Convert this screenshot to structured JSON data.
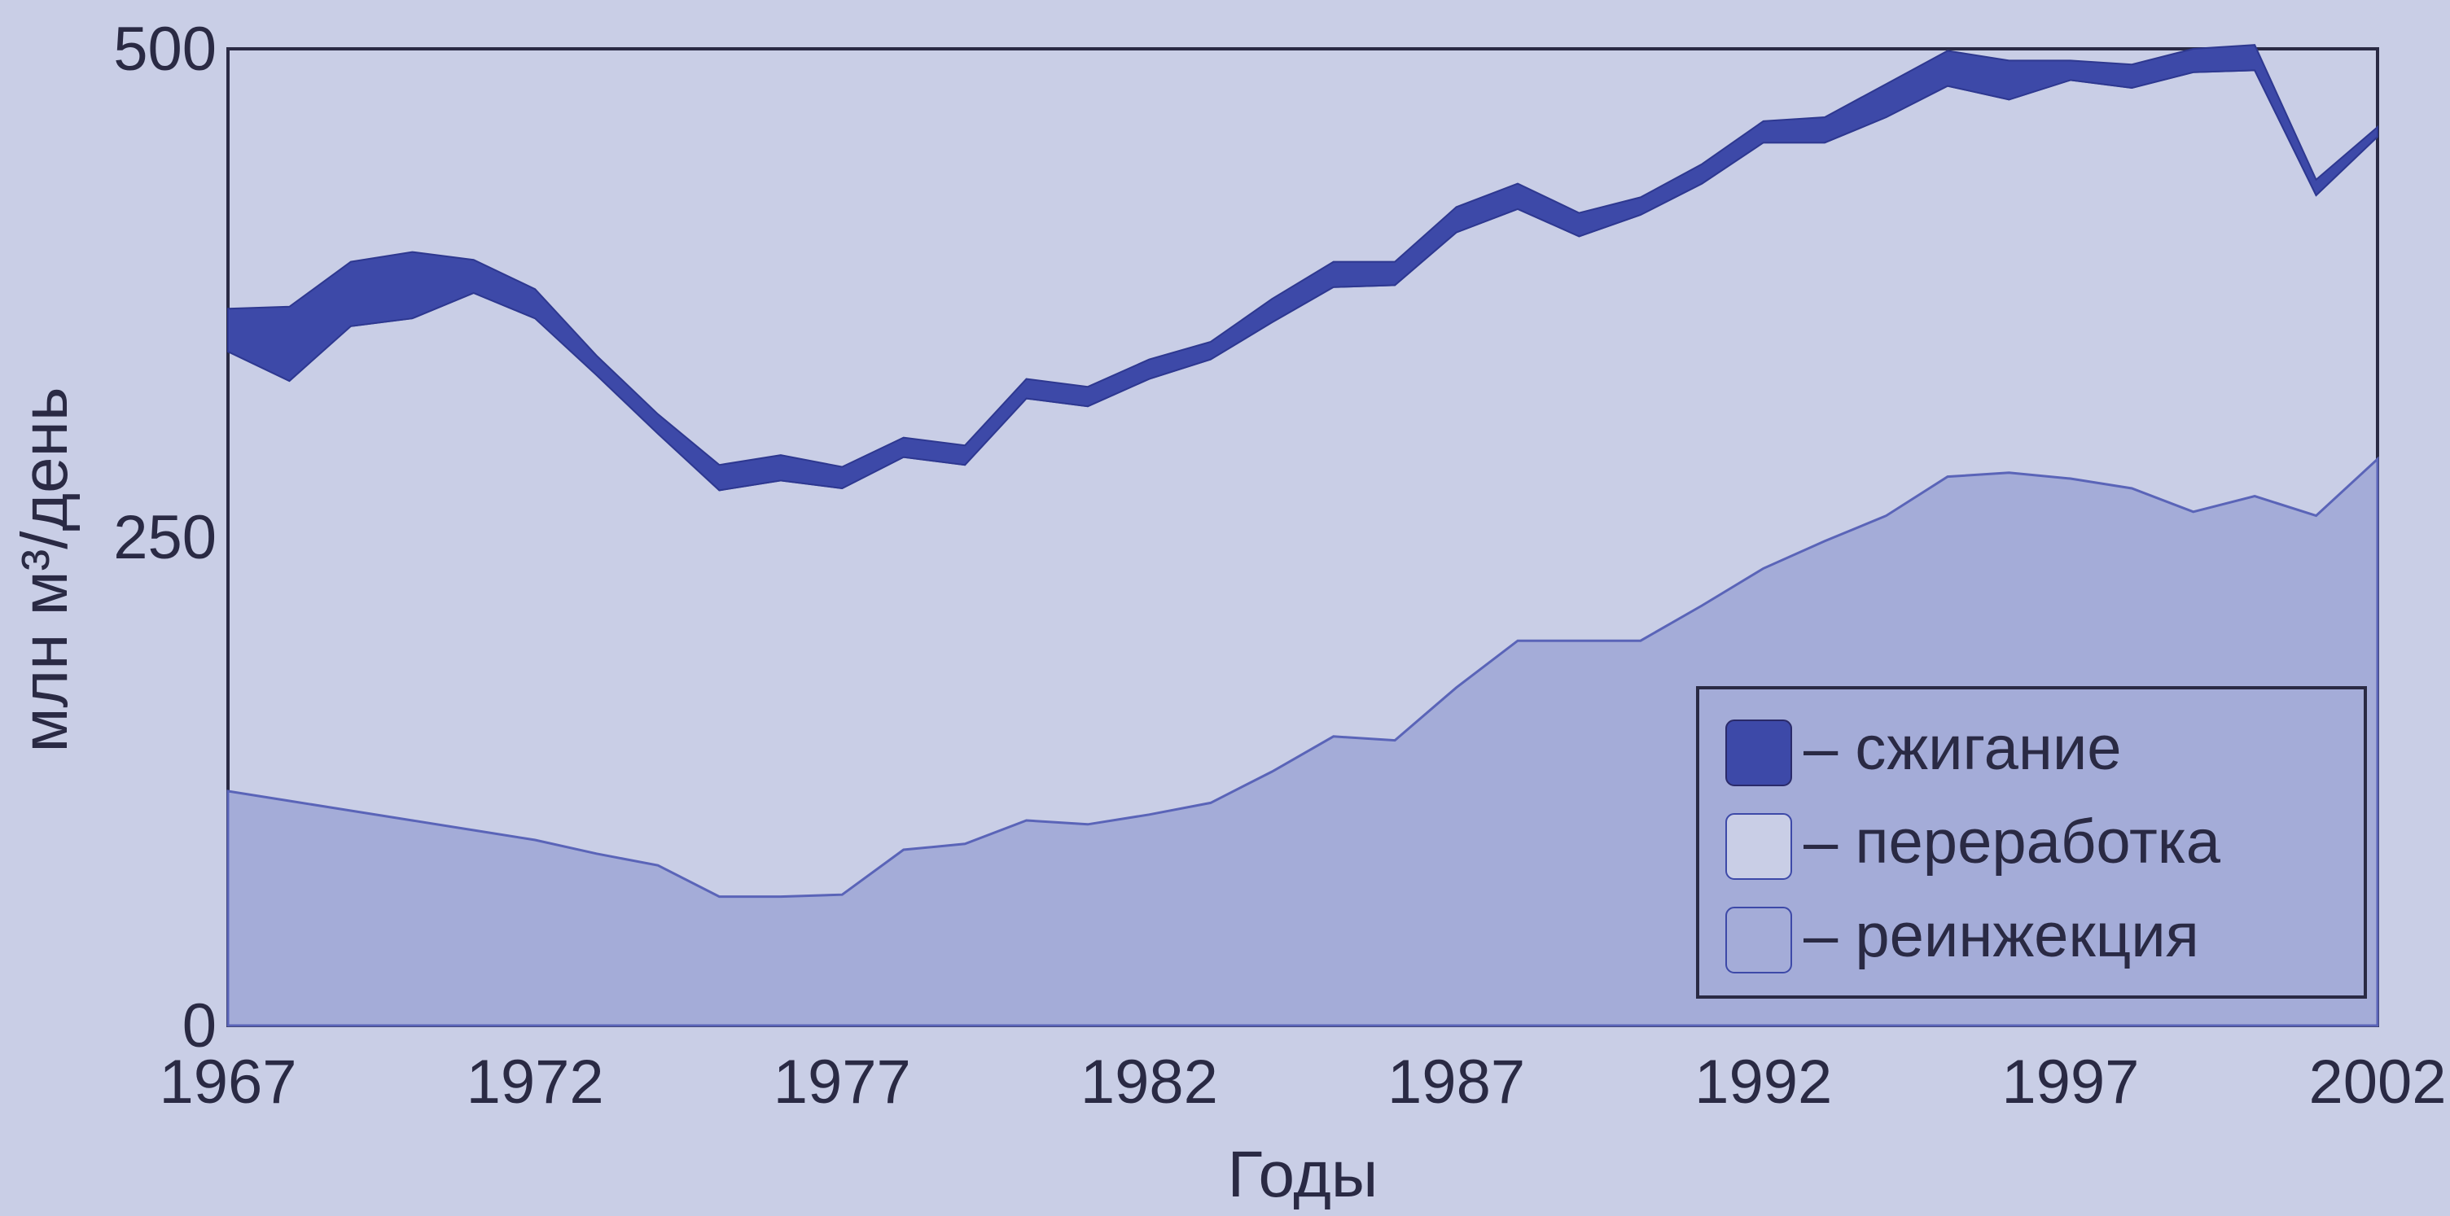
{
  "chart_data": {
    "type": "area",
    "xlabel": "Годы",
    "ylabel": "млн м³/день",
    "xlim": [
      1967,
      2002
    ],
    "ylim": [
      0,
      500
    ],
    "x_ticks": [
      "1967",
      "1972",
      "1977",
      "1982",
      "1987",
      "1992",
      "1997",
      "2002"
    ],
    "y_ticks": [
      "0",
      "250",
      "500"
    ],
    "years": [
      1967,
      1968,
      1969,
      1970,
      1971,
      1972,
      1973,
      1974,
      1975,
      1976,
      1977,
      1978,
      1979,
      1980,
      1981,
      1982,
      1983,
      1984,
      1985,
      1986,
      1987,
      1988,
      1989,
      1990,
      1991,
      1992,
      1993,
      1994,
      1995,
      1996,
      1997,
      1998,
      1999,
      2000,
      2001,
      2002
    ],
    "series": [
      {
        "name": "реинжекция",
        "values": [
          120,
          115,
          110,
          105,
          100,
          95,
          88,
          82,
          66,
          66,
          67,
          90,
          93,
          105,
          103,
          108,
          114,
          130,
          148,
          146,
          173,
          197,
          197,
          197,
          215,
          234,
          248,
          261,
          281,
          283,
          280,
          275,
          263,
          271,
          261,
          290
        ]
      },
      {
        "name": "переработка",
        "values": [
          345,
          330,
          358,
          362,
          375,
          362,
          333,
          303,
          274,
          279,
          275,
          291,
          287,
          321,
          317,
          331,
          341,
          360,
          378,
          379,
          406,
          418,
          404,
          415,
          431,
          452,
          452,
          465,
          481,
          474,
          484,
          480,
          488,
          489,
          425,
          455
        ]
      },
      {
        "name": "сжигание",
        "values": [
          22,
          38,
          33,
          34,
          17,
          15,
          10,
          10,
          13,
          13,
          11,
          10,
          10,
          10,
          10,
          10,
          9,
          12,
          13,
          12,
          13,
          13,
          12,
          9,
          10,
          11,
          13,
          17,
          18,
          20,
          10,
          12,
          12,
          13,
          8,
          5
        ]
      }
    ],
    "legend": {
      "position": "bottom-right",
      "items": [
        "– сжигание",
        "– переработка",
        "– реинжекция"
      ]
    },
    "colors": {
      "background": "#c9cee6",
      "reinjection": "#a4acd8",
      "burning": "#3d49a8",
      "plot_bg": "#c9cee6",
      "axis": "#2a2a44"
    }
  }
}
